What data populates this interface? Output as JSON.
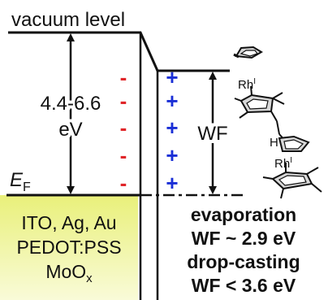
{
  "labels": {
    "vacuum_level": "vacuum level",
    "gap_value": "4.4-6.6",
    "gap_unit": "eV",
    "fermi_symbol": "E",
    "fermi_subscript": "F",
    "wf": "WF"
  },
  "electrode": {
    "line1": "ITO, Ag, Au",
    "line2": "PEDOT:PSS",
    "line3_main": "MoO",
    "line3_sub": "x"
  },
  "results": {
    "line1": "evaporation",
    "line2": "WF ~ 2.9 eV",
    "line3": "drop-casting",
    "line4": "WF < 3.6 eV"
  },
  "molecule": {
    "metal_top": "Rh",
    "metal_top_ox": "I",
    "hydrogen": "H",
    "metal_bottom": "Rh",
    "metal_bottom_ox": "I"
  },
  "charges": {
    "negative": [
      "-",
      "-",
      "-",
      "-",
      "-"
    ],
    "positive": [
      "+",
      "+",
      "+",
      "+",
      "+"
    ]
  },
  "colors": {
    "electrode_gradient_top": "#e9f07a",
    "electrode_gradient_bottom": "#f9fbd8",
    "negative_charge": "#e0262a",
    "positive_charge": "#1a2fd6",
    "line": "#111111"
  }
}
